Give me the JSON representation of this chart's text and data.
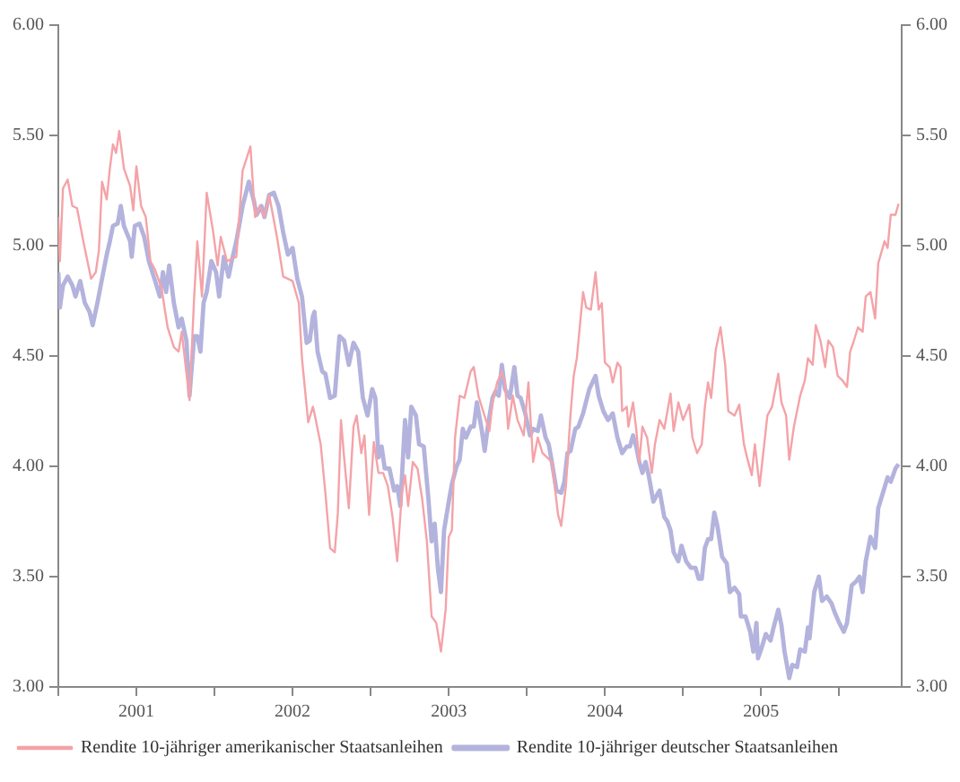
{
  "chart_data": {
    "type": "line",
    "xlim": [
      2001,
      2006.4
    ],
    "xticks": [
      {
        "value": 2001,
        "label": null
      },
      {
        "value": 2001.5,
        "label": "2001"
      },
      {
        "value": 2002,
        "label": null
      },
      {
        "value": 2002.5,
        "label": "2002"
      },
      {
        "value": 2003,
        "label": null
      },
      {
        "value": 2003.5,
        "label": "2003"
      },
      {
        "value": 2004,
        "label": null
      },
      {
        "value": 2004.5,
        "label": "2004"
      },
      {
        "value": 2005,
        "label": null
      },
      {
        "value": 2005.5,
        "label": "2005"
      },
      {
        "value": 2006,
        "label": null
      }
    ],
    "ylim": [
      3,
      6
    ],
    "yticks": [
      {
        "value": 3,
        "label": "3.00"
      },
      {
        "value": 3.5,
        "label": "3.50"
      },
      {
        "value": 4,
        "label": "4.00"
      },
      {
        "value": 4.5,
        "label": "4.50"
      },
      {
        "value": 5,
        "label": "5.00"
      },
      {
        "value": 5.5,
        "label": "5.50"
      },
      {
        "value": 6,
        "label": "6.00"
      }
    ],
    "y2lim": [
      3,
      6
    ],
    "y2ticks": [
      {
        "value": 3,
        "label": "3.00"
      },
      {
        "value": 3.5,
        "label": "3.50"
      },
      {
        "value": 4,
        "label": "4.00"
      },
      {
        "value": 4.5,
        "label": "4.50"
      },
      {
        "value": 5,
        "label": "5.00"
      },
      {
        "value": 5.5,
        "label": "5.50"
      },
      {
        "value": 6,
        "label": "6.00"
      }
    ],
    "grid": false,
    "legend": "bottom left",
    "marker": "none",
    "line_style": "solid",
    "series": [
      {
        "name": "Rendite 10-jähriger amerikanischer Staatsanleihen",
        "color": "#f4a3a8",
        "x": [
          2001.0,
          2001.01,
          2001.03,
          2001.06,
          2001.09,
          2001.12,
          2001.16,
          2001.21,
          2001.24,
          2001.26,
          2001.28,
          2001.31,
          2001.33,
          2001.35,
          2001.37,
          2001.39,
          2001.42,
          2001.46,
          2001.48,
          2001.5,
          2001.53,
          2001.56,
          2001.59,
          2001.62,
          2001.66,
          2001.7,
          2001.74,
          2001.77,
          2001.79,
          2001.84,
          2001.87,
          2001.89,
          2001.92,
          2001.95,
          2001.99,
          2002.02,
          2002.04,
          2002.08,
          2002.14,
          2002.18,
          2002.23,
          2002.26,
          2002.29,
          2002.32,
          2002.35,
          2002.4,
          2002.44,
          2002.5,
          2002.54,
          2002.56,
          2002.6,
          2002.63,
          2002.64,
          2002.68,
          2002.71,
          2002.74,
          2002.77,
          2002.79,
          2002.81,
          2002.83,
          2002.86,
          2002.89,
          2002.91,
          2002.94,
          2002.96,
          2002.99,
          2003.02,
          2003.05,
          2003.08,
          2003.11,
          2003.14,
          2003.17,
          2003.2,
          2003.22,
          2003.24,
          2003.27,
          2003.3,
          2003.33,
          2003.36,
          2003.39,
          2003.42,
          2003.45,
          2003.48,
          2003.5,
          2003.52,
          2003.54,
          2003.57,
          2003.6,
          2003.64,
          2003.66,
          2003.69,
          2003.72,
          2003.76,
          2003.78,
          2003.81,
          2003.84,
          2003.86,
          2003.88,
          2003.91,
          2003.94,
          2003.98,
          2004.01,
          2004.04,
          2004.07,
          2004.1,
          2004.13,
          2004.16,
          2004.2,
          2004.22,
          2004.25,
          2004.28,
          2004.3,
          2004.32,
          2004.36,
          2004.38,
          2004.41,
          2004.44,
          2004.46,
          2004.48,
          2004.5,
          2004.53,
          2004.55,
          2004.58,
          2004.6,
          2004.61,
          2004.64,
          2004.65,
          2004.68,
          2004.7,
          2004.72,
          2004.74,
          2004.77,
          2004.8,
          2004.82,
          2004.85,
          2004.88,
          2004.92,
          2004.94,
          2004.97,
          2005.0,
          2005.04,
          2005.06,
          2005.09,
          2005.12,
          2005.14,
          2005.16,
          2005.18,
          2005.21,
          2005.24,
          2005.27,
          2005.29,
          2005.33,
          2005.36,
          2005.39,
          2005.41,
          2005.44,
          2005.46,
          2005.49,
          2005.52,
          2005.54,
          2005.57,
          2005.61,
          2005.63,
          2005.66,
          2005.68,
          2005.71,
          2005.75,
          2005.78,
          2005.8,
          2005.83,
          2005.85,
          2005.88,
          2005.91,
          2005.93,
          2005.96,
          2005.99,
          2006.02,
          2006.05,
          2006.07,
          2006.09,
          2006.12,
          2006.15,
          2006.17,
          2006.2,
          2006.23,
          2006.25,
          2006.29,
          2006.31,
          2006.33,
          2006.36,
          2006.38
        ],
        "values": [
          5.13,
          4.93,
          5.26,
          5.3,
          5.18,
          5.17,
          5.02,
          4.85,
          4.88,
          4.98,
          5.29,
          5.21,
          5.35,
          5.46,
          5.42,
          5.52,
          5.35,
          5.27,
          5.16,
          5.36,
          5.18,
          5.13,
          4.93,
          4.89,
          4.81,
          4.63,
          4.54,
          4.52,
          4.61,
          4.3,
          4.77,
          5.02,
          4.77,
          5.24,
          5.07,
          4.91,
          5.04,
          4.93,
          4.95,
          5.34,
          5.45,
          5.13,
          5.18,
          5.13,
          5.23,
          5.04,
          4.86,
          4.84,
          4.74,
          4.49,
          4.2,
          4.27,
          4.24,
          4.1,
          3.88,
          3.63,
          3.61,
          3.79,
          4.21,
          4.04,
          3.81,
          4.18,
          4.23,
          4.06,
          4.14,
          3.78,
          4.11,
          3.97,
          3.97,
          3.91,
          3.77,
          3.57,
          3.88,
          3.96,
          3.82,
          4.02,
          3.99,
          3.85,
          3.66,
          3.32,
          3.29,
          3.16,
          3.35,
          3.68,
          3.71,
          4.13,
          4.32,
          4.31,
          4.43,
          4.45,
          4.32,
          4.25,
          4.16,
          4.29,
          4.38,
          4.43,
          4.38,
          4.17,
          4.32,
          4.21,
          4.14,
          4.38,
          4.02,
          4.13,
          4.06,
          4.04,
          4.02,
          3.78,
          3.73,
          3.91,
          4.24,
          4.41,
          4.49,
          4.79,
          4.72,
          4.71,
          4.88,
          4.71,
          4.74,
          4.47,
          4.45,
          4.38,
          4.47,
          4.45,
          4.25,
          4.27,
          4.18,
          4.29,
          4.17,
          4.02,
          4.18,
          4.13,
          3.97,
          4.1,
          4.21,
          4.17,
          4.33,
          4.16,
          4.29,
          4.21,
          4.28,
          4.13,
          4.06,
          4.1,
          4.27,
          4.38,
          4.31,
          4.53,
          4.63,
          4.46,
          4.25,
          4.23,
          4.28,
          4.1,
          4.04,
          3.96,
          4.1,
          3.91,
          4.1,
          4.23,
          4.27,
          4.42,
          4.29,
          4.23,
          4.03,
          4.18,
          4.32,
          4.39,
          4.49,
          4.46,
          4.64,
          4.57,
          4.45,
          4.57,
          4.54,
          4.41,
          4.39,
          4.36,
          4.52,
          4.56,
          4.63,
          4.61,
          4.77,
          4.79,
          4.67,
          4.92,
          5.02,
          4.99,
          5.14,
          5.14,
          5.19
        ]
      },
      {
        "name": "Rendite 10-jähriger deutscher Staatsanleihen",
        "color": "#b3b3dd",
        "x": [
          2001.0,
          2001.01,
          2001.03,
          2001.06,
          2001.09,
          2001.11,
          2001.14,
          2001.17,
          2001.2,
          2001.22,
          2001.25,
          2001.28,
          2001.31,
          2001.33,
          2001.35,
          2001.38,
          2001.4,
          2001.42,
          2001.46,
          2001.47,
          2001.49,
          2001.52,
          2001.55,
          2001.58,
          2001.62,
          2001.65,
          2001.67,
          2001.69,
          2001.71,
          2001.74,
          2001.77,
          2001.79,
          2001.82,
          2001.84,
          2001.87,
          2001.89,
          2001.91,
          2001.93,
          2001.95,
          2001.98,
          2002.01,
          2002.03,
          2002.06,
          2002.09,
          2002.11,
          2002.14,
          2002.18,
          2002.22,
          2002.25,
          2002.27,
          2002.3,
          2002.32,
          2002.35,
          2002.38,
          2002.41,
          2002.44,
          2002.47,
          2002.5,
          2002.53,
          2002.56,
          2002.59,
          2002.61,
          2002.63,
          2002.64,
          2002.66,
          2002.69,
          2002.71,
          2002.74,
          2002.77,
          2002.8,
          2002.83,
          2002.86,
          2002.89,
          2002.92,
          2002.95,
          2002.98,
          2003.01,
          2003.03,
          2003.05,
          2003.07,
          2003.09,
          2003.12,
          2003.15,
          2003.17,
          2003.19,
          2003.22,
          2003.24,
          2003.26,
          2003.29,
          2003.31,
          2003.34,
          2003.37,
          2003.39,
          2003.41,
          2003.43,
          2003.45,
          2003.47,
          2003.5,
          2003.52,
          2003.55,
          2003.57,
          2003.59,
          2003.61,
          2003.64,
          2003.66,
          2003.68,
          2003.71,
          2003.73,
          2003.75,
          2003.78,
          2003.8,
          2003.82,
          2003.84,
          2003.86,
          2003.89,
          2003.92,
          2003.94,
          2003.96,
          2003.99,
          2004.02,
          2004.04,
          2004.07,
          2004.09,
          2004.12,
          2004.14,
          2004.16,
          2004.19,
          2004.22,
          2004.24,
          2004.26,
          2004.28,
          2004.31,
          2004.33,
          2004.36,
          2004.4,
          2004.42,
          2004.44,
          2004.46,
          2004.49,
          2004.52,
          2004.55,
          2004.58,
          2004.61,
          2004.64,
          2004.66,
          2004.68,
          2004.7,
          2004.72,
          2004.74,
          2004.76,
          2004.78,
          2004.81,
          2004.84,
          2004.85,
          2004.88,
          2004.9,
          2004.92,
          2004.94,
          2004.97,
          2004.99,
          2005.02,
          2005.05,
          2005.08,
          2005.1,
          2005.12,
          2005.14,
          2005.16,
          2005.18,
          2005.2,
          2005.22,
          2005.25,
          2005.28,
          2005.3,
          2005.33,
          2005.36,
          2005.37,
          2005.4,
          2005.43,
          2005.45,
          2005.47,
          2005.48,
          2005.5,
          2005.53,
          2005.56,
          2005.58,
          2005.61,
          2005.63,
          2005.65,
          2005.68,
          2005.7,
          2005.73,
          2005.75,
          2005.78,
          2005.8,
          2005.81,
          2005.84,
          2005.87,
          2005.89,
          2005.92,
          2005.95,
          2005.97,
          2006.0,
          2006.03,
          2006.05,
          2006.08,
          2006.11,
          2006.13,
          2006.15,
          2006.17,
          2006.2,
          2006.23,
          2006.25,
          2006.28,
          2006.31,
          2006.33,
          2006.36,
          2006.38
        ],
        "values": [
          4.88,
          4.72,
          4.82,
          4.86,
          4.82,
          4.77,
          4.84,
          4.74,
          4.7,
          4.64,
          4.74,
          4.85,
          4.96,
          5.02,
          5.09,
          5.1,
          5.18,
          5.09,
          5.02,
          4.95,
          5.09,
          5.1,
          5.04,
          4.93,
          4.84,
          4.77,
          4.88,
          4.79,
          4.91,
          4.74,
          4.63,
          4.67,
          4.57,
          4.32,
          4.59,
          4.59,
          4.52,
          4.74,
          4.79,
          4.93,
          4.88,
          4.77,
          4.95,
          4.86,
          4.93,
          5.02,
          5.18,
          5.29,
          5.21,
          5.14,
          5.18,
          5.13,
          5.23,
          5.24,
          5.18,
          5.06,
          4.96,
          4.99,
          4.85,
          4.77,
          4.56,
          4.57,
          4.68,
          4.7,
          4.52,
          4.43,
          4.42,
          4.31,
          4.32,
          4.59,
          4.57,
          4.46,
          4.56,
          4.52,
          4.31,
          4.23,
          4.35,
          4.31,
          4.04,
          4.09,
          3.99,
          3.99,
          3.89,
          3.91,
          3.82,
          4.21,
          4.04,
          4.27,
          4.23,
          4.1,
          4.09,
          3.85,
          3.66,
          3.74,
          3.54,
          3.43,
          3.71,
          3.84,
          3.92,
          4.0,
          4.03,
          4.17,
          4.13,
          4.18,
          4.18,
          4.29,
          4.17,
          4.07,
          4.18,
          4.31,
          4.34,
          4.32,
          4.46,
          4.35,
          4.31,
          4.45,
          4.32,
          4.31,
          4.24,
          4.14,
          4.17,
          4.16,
          4.23,
          4.13,
          4.1,
          4.02,
          3.89,
          3.88,
          3.93,
          4.06,
          4.07,
          4.17,
          4.18,
          4.24,
          4.35,
          4.38,
          4.41,
          4.32,
          4.25,
          4.21,
          4.24,
          4.13,
          4.06,
          4.09,
          4.09,
          4.14,
          4.09,
          4.02,
          3.97,
          4.02,
          3.96,
          3.84,
          3.88,
          3.89,
          3.77,
          3.75,
          3.71,
          3.61,
          3.57,
          3.64,
          3.57,
          3.54,
          3.54,
          3.49,
          3.49,
          3.63,
          3.67,
          3.67,
          3.79,
          3.73,
          3.59,
          3.56,
          3.43,
          3.45,
          3.42,
          3.32,
          3.32,
          3.25,
          3.16,
          3.29,
          3.13,
          3.17,
          3.24,
          3.21,
          3.27,
          3.35,
          3.28,
          3.16,
          3.04,
          3.1,
          3.09,
          3.17,
          3.16,
          3.27,
          3.22,
          3.43,
          3.5,
          3.39,
          3.41,
          3.38,
          3.34,
          3.29,
          3.25,
          3.29,
          3.46,
          3.48,
          3.5,
          3.43,
          3.57,
          3.68,
          3.63,
          3.81,
          3.88,
          3.95,
          3.93,
          3.99,
          4.01
        ]
      }
    ]
  }
}
